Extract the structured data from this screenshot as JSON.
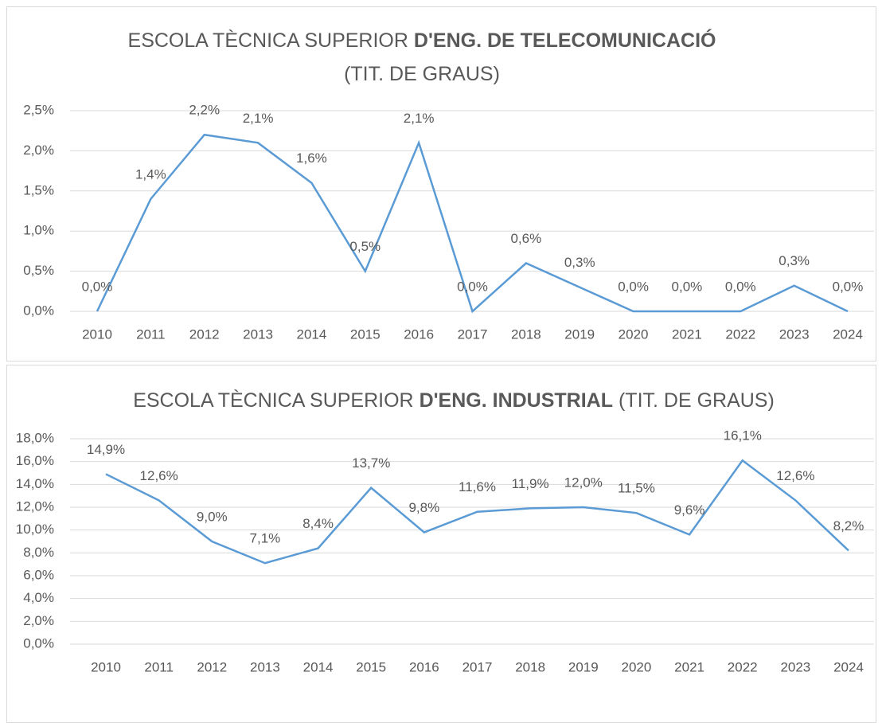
{
  "chart_data": [
    {
      "type": "line",
      "title": "ESCOLA TÈCNICA SUPERIOR",
      "title_bold": "D'ENG. DE TELECOMUNICACIÓ",
      "title_suffix": "(TIT. DE GRAUS)",
      "categories": [
        "2010",
        "2011",
        "2012",
        "2013",
        "2014",
        "2015",
        "2016",
        "2017",
        "2018",
        "2019",
        "2020",
        "2021",
        "2022",
        "2023",
        "2024"
      ],
      "values": [
        0,
        1.4,
        2.2,
        2.1,
        1.6,
        0.5,
        2.1,
        0,
        0.6,
        0.3,
        0,
        0,
        0,
        0.32,
        0
      ],
      "value_labels": [
        "0,0%",
        "1,4%",
        "2,2%",
        "2,1%",
        "1,6%",
        "0,5%",
        "2,1%",
        "0,0%",
        "0,6%",
        "0,3%",
        "0,0%",
        "0,0%",
        "0,0%",
        "0,3%",
        "0,0%"
      ],
      "color": "#5b9bd5",
      "ylim": [
        0,
        2.5
      ],
      "yticks": [
        {
          "value": 0,
          "label": "0,0%"
        },
        {
          "value": 0.5,
          "label": "0,5%"
        },
        {
          "value": 1,
          "label": "1,0%"
        },
        {
          "value": 1.5,
          "label": "1,5%"
        },
        {
          "value": 2,
          "label": "2,0%"
        },
        {
          "value": 2.5,
          "label": "2,5%"
        }
      ],
      "grid": true
    },
    {
      "type": "line",
      "title": "ESCOLA TÈCNICA SUPERIOR",
      "title_bold": "D'ENG. INDUSTRIAL",
      "title_suffix": "(TIT. DE GRAUS)",
      "categories": [
        "2010",
        "2011",
        "2012",
        "2013",
        "2014",
        "2015",
        "2016",
        "2017",
        "2018",
        "2019",
        "2020",
        "2021",
        "2022",
        "2023",
        "2024"
      ],
      "values": [
        14.9,
        12.6,
        9.0,
        7.1,
        8.4,
        13.7,
        9.8,
        11.6,
        11.9,
        12.0,
        11.5,
        9.6,
        16.1,
        12.6,
        8.2
      ],
      "value_labels": [
        "14,9%",
        "12,6%",
        "9,0%",
        "7,1%",
        "8,4%",
        "13,7%",
        "9,8%",
        "11,6%",
        "11,9%",
        "12,0%",
        "11,5%",
        "9,6%",
        "16,1%",
        "12,6%",
        "8,2%"
      ],
      "color": "#5b9bd5",
      "ylim": [
        0,
        18
      ],
      "yticks": [
        {
          "value": 0,
          "label": "0,0%"
        },
        {
          "value": 2,
          "label": "2,0%"
        },
        {
          "value": 4,
          "label": "4,0%"
        },
        {
          "value": 6,
          "label": "6,0%"
        },
        {
          "value": 8,
          "label": "8,0%"
        },
        {
          "value": 10,
          "label": "10,0%"
        },
        {
          "value": 12,
          "label": "12,0%"
        },
        {
          "value": 14,
          "label": "14,0%"
        },
        {
          "value": 16,
          "label": "16,0%"
        },
        {
          "value": 18,
          "label": "18,0%"
        }
      ],
      "grid": true
    }
  ]
}
